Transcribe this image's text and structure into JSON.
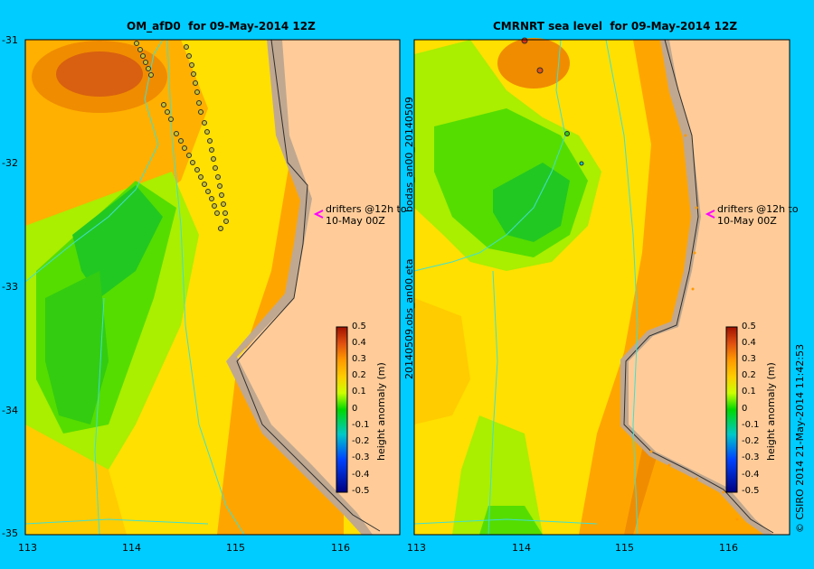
{
  "left_panel": {
    "title": "OM_afD0  for 09-May-2014 12Z",
    "annotation": [
      "drifters @12h to",
      "10-May 00Z"
    ]
  },
  "right_panel": {
    "title": "CMRNRT sea level  for 09-May-2014 12Z",
    "annotation": [
      "drifters @12h to",
      "10-May 00Z"
    ],
    "side_label": "20140509.obs_an00.eta",
    "side_label2": "bodas_an00_20140509"
  },
  "y_ticks": [
    "-31",
    "-32",
    "-33",
    "-34",
    "-35"
  ],
  "x_ticks": [
    "113",
    "114",
    "115",
    "116"
  ],
  "colorbar": {
    "label": "height anomaly (m)",
    "ticks": [
      "0.5",
      "0.4",
      "0.3",
      "0.2",
      "0.1",
      "0",
      "-0.1",
      "-0.2",
      "-0.3",
      "-0.4",
      "-0.5"
    ]
  },
  "credit": "© CSIRO 2014   21-May-2014 11:42:53",
  "colors": {
    "background": "#00ccff",
    "land": "#ffcc99",
    "shelf": "#c0a890",
    "coast": "#40e0d0"
  }
}
